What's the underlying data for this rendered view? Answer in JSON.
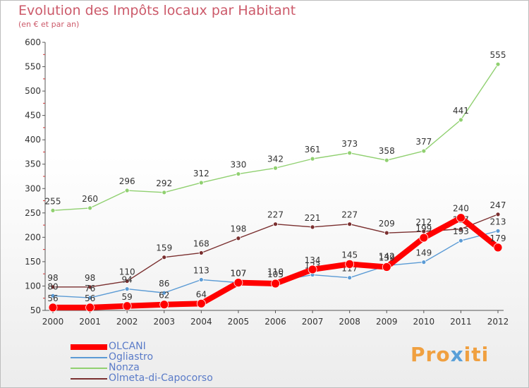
{
  "header": {
    "title": "Evolution des Impôts locaux par Habitant",
    "subtitle": "(en € et par an)"
  },
  "logo": {
    "text": "Proxiti"
  },
  "chart_data": {
    "type": "line",
    "title": "Evolution des Impôts locaux par Habitant",
    "subtitle": "(en € et par an)",
    "xlabel": "",
    "ylabel": "",
    "x": [
      "2000",
      "2001",
      "2002",
      "2003",
      "2004",
      "2005",
      "2006",
      "2007",
      "2008",
      "2009",
      "2010",
      "2011",
      "2012"
    ],
    "ylim": [
      50,
      600
    ],
    "yticks": [
      50,
      100,
      150,
      200,
      250,
      300,
      350,
      400,
      450,
      500,
      550,
      600
    ],
    "grid": false,
    "legend_position": "bottom-left",
    "series": [
      {
        "name": "Nonza",
        "color": "#90d070",
        "values": [
          255,
          260,
          296,
          292,
          312,
          330,
          342,
          361,
          373,
          358,
          377,
          441,
          555
        ]
      },
      {
        "name": "Olmeta-di-Capocorso",
        "color": "#7a2f2f",
        "values": [
          98,
          98,
          110,
          159,
          168,
          198,
          227,
          221,
          227,
          209,
          212,
          217,
          247
        ]
      },
      {
        "name": "Ogliastro",
        "color": "#5b9bd5",
        "values": [
          80,
          76,
          94,
          86,
          113,
          107,
          110,
          123,
          117,
          142,
          149,
          193,
          213
        ]
      },
      {
        "name": "OLCANI",
        "color": "#ff0000",
        "values": [
          56,
          56,
          59,
          62,
          64,
          107,
          105,
          134,
          145,
          139,
          199,
          240,
          179
        ]
      }
    ],
    "legend_order": [
      "OLCANI",
      "Ogliastro",
      "Nonza",
      "Olmeta-di-Capocorso"
    ]
  }
}
